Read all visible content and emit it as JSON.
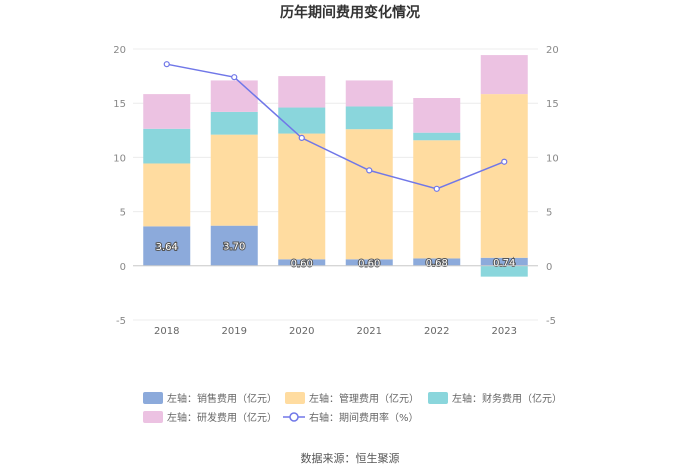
{
  "chart_data": {
    "type": "bar",
    "stacked": true,
    "title": "历年期间费用变化情况",
    "categories": [
      "2018",
      "2019",
      "2020",
      "2021",
      "2022",
      "2023"
    ],
    "left_axis": {
      "min": -5,
      "max": 20,
      "ticks": [
        "-5",
        "0",
        "5",
        "10",
        "15",
        "20"
      ]
    },
    "right_axis": {
      "min": -5,
      "max": 20,
      "ticks": [
        "-5",
        "0",
        "5",
        "10",
        "15",
        "20"
      ]
    },
    "series": [
      {
        "name": "左轴：销售费用（亿元）",
        "kind": "bar",
        "color": "#8caadb",
        "values": [
          3.64,
          3.7,
          0.6,
          0.6,
          0.68,
          0.74
        ],
        "labels": [
          "3.64",
          "3.70",
          "0.60",
          "0.60",
          "0.68",
          "0.74"
        ]
      },
      {
        "name": "左轴：管理费用（亿元）",
        "kind": "bar",
        "color": "#ffdca0",
        "values": [
          5.8,
          8.4,
          11.6,
          12.0,
          10.9,
          15.1
        ]
      },
      {
        "name": "左轴：财务费用（亿元）",
        "kind": "bar",
        "color": "#8ad6dc",
        "values": [
          3.2,
          2.1,
          2.4,
          2.1,
          0.7,
          -1.0
        ]
      },
      {
        "name": "左轴：研发费用（亿元）",
        "kind": "bar",
        "color": "#ecc2e2",
        "values": [
          3.2,
          2.9,
          2.9,
          2.4,
          3.2,
          3.6
        ]
      },
      {
        "name": "右轴：期间费用率（%）",
        "kind": "line",
        "color": "#7077e8",
        "values": [
          18.6,
          17.4,
          11.8,
          8.8,
          7.1,
          9.6
        ]
      }
    ],
    "source": "数据来源：恒生聚源"
  }
}
